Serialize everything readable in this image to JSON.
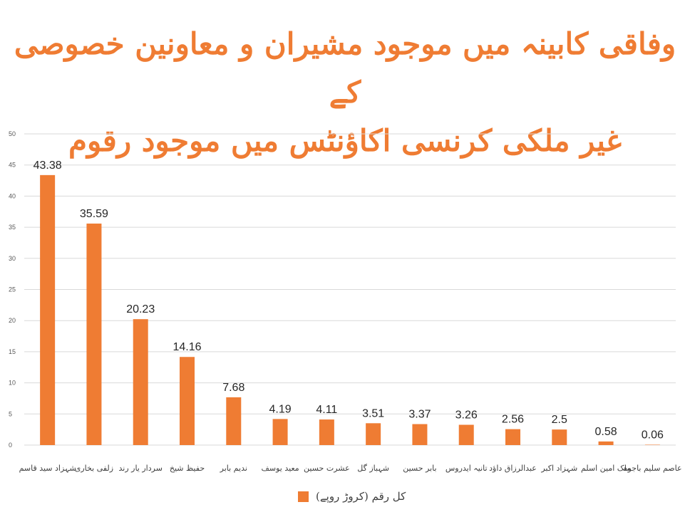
{
  "title": {
    "line1": "وفاقی کابینہ میں موجود مشیران و معاونین خصوصی کے",
    "line2": "غیر ملکی کرنسی اکاؤنٹس میں موجود رقوم"
  },
  "colors": {
    "bar": "#ef7c33",
    "grid": "#d9d9d9",
    "title": "#ef7c33"
  },
  "chart_data": {
    "type": "bar",
    "title": "وفاقی کابینہ میں موجود مشیران و معاونین خصوصی کے غیر ملکی کرنسی اکاؤنٹس میں موجود رقوم",
    "categories": [
      "شہزاد سید قاسم",
      "زلفی بخاری",
      "سردار یار رند",
      "حفیظ شیخ",
      "ندیم بابر",
      "معید یوسف",
      "عشرت حسین",
      "شہباز گل",
      "بابر حسین",
      "تانیہ ایدروس",
      "عبدالرزاق داؤد",
      "شہزاد اکبر",
      "ملک امین اسلم",
      "عاصم سلیم باجوہ"
    ],
    "series": [
      {
        "name": "کل رقم (کروڑ روپے)",
        "values": [
          43.38,
          35.59,
          20.23,
          14.16,
          7.68,
          4.19,
          4.11,
          3.51,
          3.37,
          3.26,
          2.56,
          2.5,
          0.58,
          0.06
        ]
      }
    ],
    "value_labels": [
      "43.38",
      "35.59",
      "20.23",
      "14.16",
      "7.68",
      "4.19",
      "4.11",
      "3.51",
      "3.37",
      "3.26",
      "2.56",
      "2.5",
      "0.58",
      "0.06"
    ],
    "yticks": [
      "0",
      "5",
      "10",
      "15",
      "20",
      "25",
      "30",
      "35",
      "40",
      "45",
      "50"
    ],
    "ylim": [
      0,
      50
    ],
    "grid": true,
    "legend_position": "bottom"
  }
}
